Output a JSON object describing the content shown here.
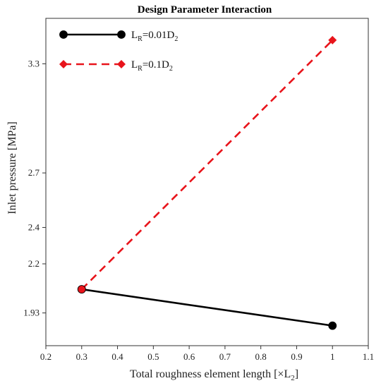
{
  "chart_data": {
    "type": "line",
    "title": "Design Parameter Interaction",
    "xlabel": {
      "main": "Total roughness element length [×L",
      "sub": "2",
      "tail": "]"
    },
    "ylabel": "Inlet pressure [MPa]",
    "xlim": [
      0.2,
      1.1
    ],
    "ylim": [
      1.75,
      3.55
    ],
    "xticks": [
      0.2,
      0.3,
      0.4,
      0.5,
      0.6,
      0.7,
      0.8,
      0.9,
      1.0,
      1.1
    ],
    "xtick_labels": [
      "0.2",
      "0.3",
      "0.4",
      "0.5",
      "0.6",
      "0.7",
      "0.8",
      "0.9",
      "1",
      "1.1"
    ],
    "yticks": [
      1.93,
      2.2,
      2.4,
      2.7,
      3.3
    ],
    "ytick_labels": [
      "1.93",
      "2.2",
      "2.4",
      "2.7",
      "3.3"
    ],
    "grid": false,
    "legend_position": "top-left",
    "series": [
      {
        "legend": {
          "pre": "L",
          "sub1": "R",
          "mid": "=0.01D",
          "sub2": "2"
        },
        "x": [
          0.3,
          1.0
        ],
        "y": [
          2.06,
          1.86
        ],
        "color": "#000000",
        "line_style": "solid",
        "marker": "circle"
      },
      {
        "legend": {
          "pre": "L",
          "sub1": "R",
          "mid": "=0.1D",
          "sub2": "2"
        },
        "x": [
          0.3,
          1.0
        ],
        "y": [
          2.06,
          3.43
        ],
        "color": "#e8141b",
        "line_style": "dashed",
        "marker": "diamond"
      }
    ]
  }
}
